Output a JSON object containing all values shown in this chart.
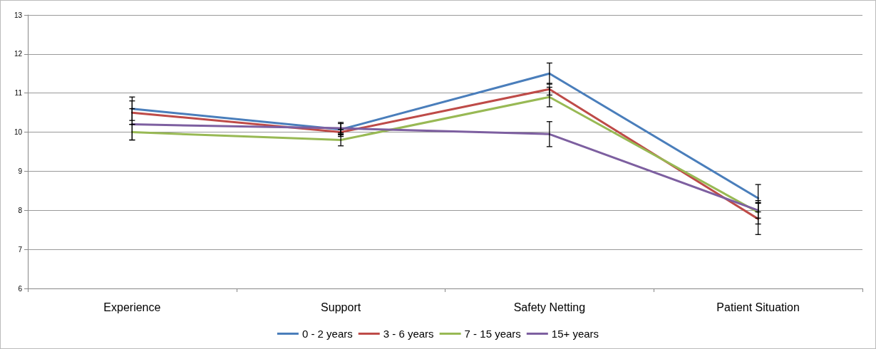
{
  "chart_data": {
    "type": "line",
    "categories": [
      "Experience",
      "Support",
      "Safety Netting",
      "Patient Situation"
    ],
    "series": [
      {
        "name": "0 - 2 years",
        "color": "#4a7ebb",
        "values": [
          10.6,
          10.07,
          11.5,
          8.31
        ],
        "errors": [
          0.3,
          0.18,
          0.27,
          0.35
        ]
      },
      {
        "name": "3 - 6 years",
        "color": "#be4b48",
        "values": [
          10.5,
          10.0,
          11.1,
          7.78
        ],
        "errors": [
          0.3,
          0.07,
          0.15,
          0.4
        ]
      },
      {
        "name": "7 - 15 years",
        "color": "#98b954",
        "values": [
          10.0,
          9.8,
          10.9,
          7.95
        ],
        "errors": [
          0.2,
          0.15,
          0.25,
          0.3
        ]
      },
      {
        "name": "15+ years",
        "color": "#7d5fa0",
        "values": [
          10.2,
          10.1,
          9.95,
          8.0
        ],
        "errors": [
          0.4,
          0.12,
          0.32,
          0.2
        ]
      }
    ],
    "ylim": [
      6,
      13
    ],
    "yticks": [
      6,
      7,
      8,
      9,
      10,
      11,
      12,
      13
    ],
    "grid": "y",
    "legend": "bottom",
    "marker": "none",
    "line_style": "solid"
  }
}
